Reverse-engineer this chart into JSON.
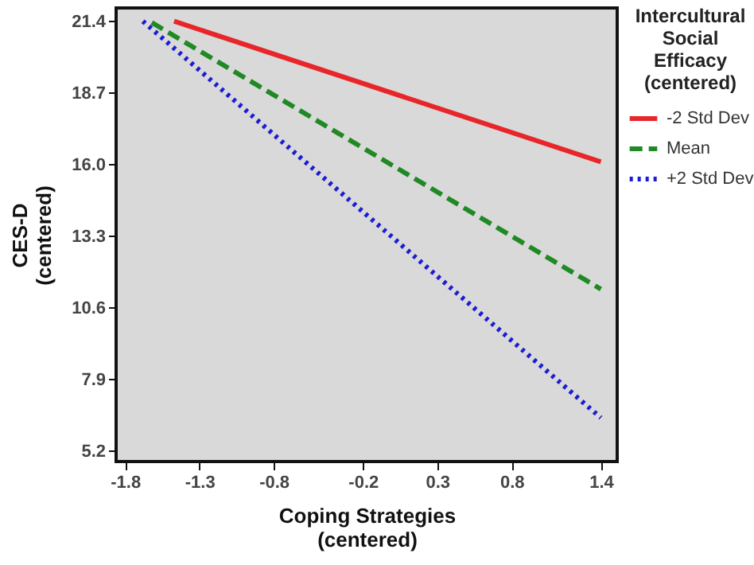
{
  "chart_data": {
    "type": "line",
    "xlabel": "Coping Strategies\n(centered)",
    "ylabel": "CES-D\n(centered)",
    "legend_title": "Intercultural\nSocial\nEfficacy\n(centered)",
    "xlim": [
      -1.86,
      1.51
    ],
    "ylim": [
      4.8,
      21.9
    ],
    "xticks": [
      -1.8,
      -1.3,
      -0.8,
      -0.2,
      0.3,
      0.8,
      1.4
    ],
    "yticks": [
      5.2,
      7.9,
      10.6,
      13.3,
      {
        "value": 16,
        "label": "16.0"
      },
      18.7,
      21.4
    ],
    "grid": false,
    "legend": "top right",
    "marker": "none",
    "series": [
      {
        "name": "-2 Std Dev",
        "color": "#e8262a",
        "line_style": "solid",
        "x": [
          -1.47,
          1.4
        ],
        "values": [
          21.4,
          16.1
        ]
      },
      {
        "name": "Mean",
        "color": "#1f8a24",
        "line_style": "dashed",
        "x": [
          -1.62,
          1.4
        ],
        "values": [
          21.35,
          11.3
        ]
      },
      {
        "name": "+2 Std Dev",
        "color": "#1c1cd6",
        "line_style": "dotted",
        "x": [
          -1.68,
          1.4
        ],
        "values": [
          21.4,
          6.45
        ]
      }
    ]
  }
}
